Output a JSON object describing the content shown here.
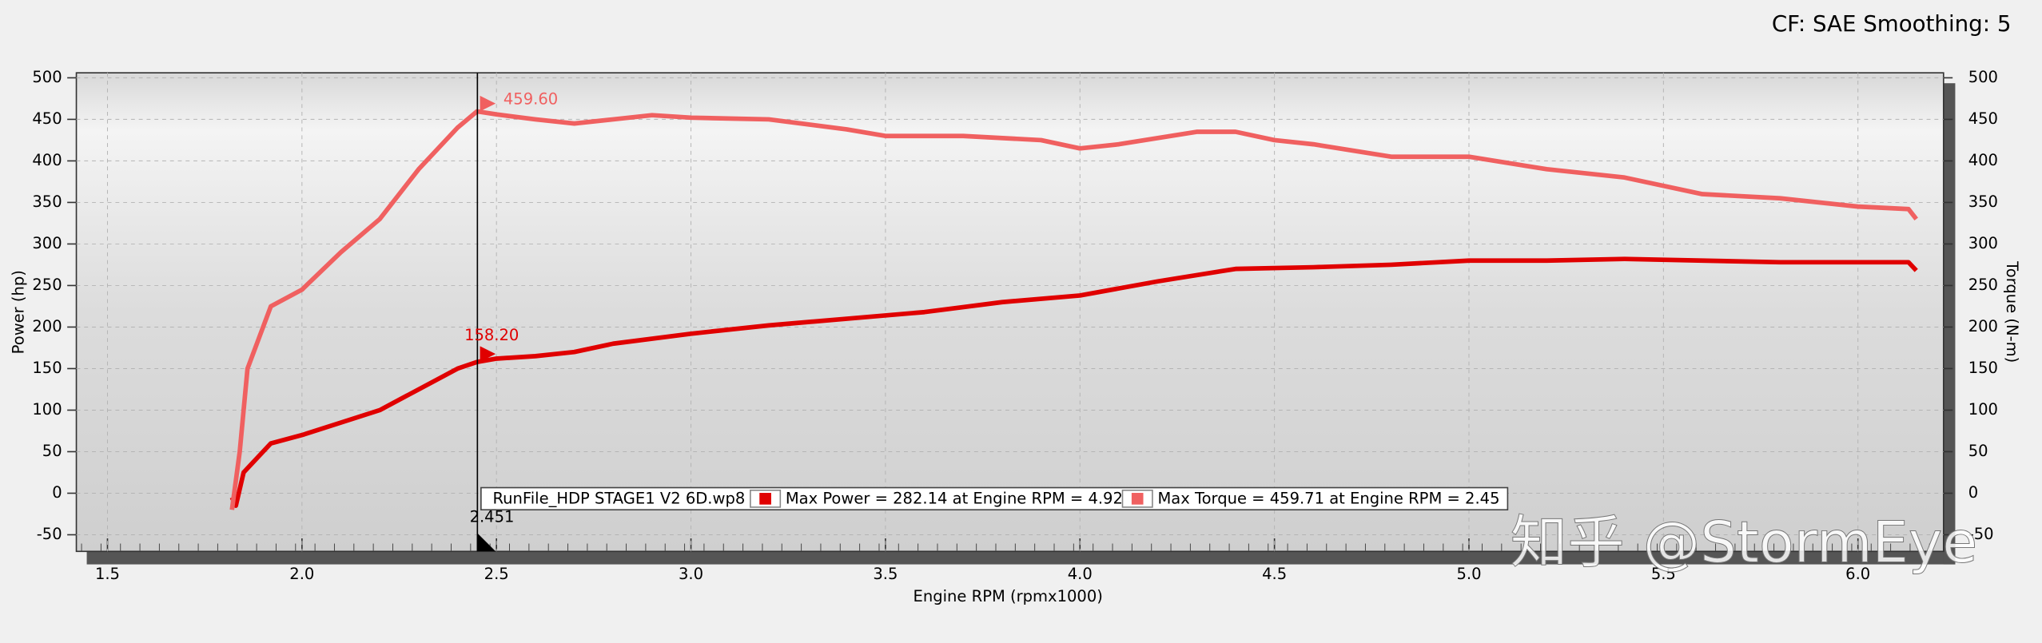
{
  "chart_data": {
    "type": "line",
    "header": "CF: SAE Smoothing: 5",
    "xlabel": "Engine RPM (rpmx1000)",
    "ylabel": "Power (hp)",
    "y2label": "Torque (N-m)",
    "xlim": [
      1.42,
      6.22
    ],
    "xticks": [
      {
        "value": 1.5,
        "label": "1.5"
      },
      {
        "value": 2,
        "label": "2.0"
      },
      {
        "value": 2.5,
        "label": "2.5"
      },
      {
        "value": 3,
        "label": "3.0"
      },
      {
        "value": 3.5,
        "label": "3.5"
      },
      {
        "value": 4,
        "label": "4.0"
      },
      {
        "value": 4.5,
        "label": "4.5"
      },
      {
        "value": 5,
        "label": "5.0"
      },
      {
        "value": 5.5,
        "label": "5.5"
      },
      {
        "value": 6,
        "label": "6.0"
      }
    ],
    "ylim": [
      -70,
      506
    ],
    "yticks": [
      -50,
      0,
      50,
      100,
      150,
      200,
      250,
      300,
      350,
      400,
      450,
      500
    ],
    "y2lim": [
      -70,
      506
    ],
    "y2ticks": [
      -50,
      0,
      50,
      100,
      150,
      200,
      250,
      300,
      350,
      400,
      450,
      500
    ],
    "grid": true,
    "series": [
      {
        "name": "Max Power = 282.14 at Engine RPM = 4.92",
        "color": "#e00000",
        "x": [
          1.82,
          1.83,
          1.85,
          1.9,
          1.92,
          2.0,
          2.1,
          2.2,
          2.3,
          2.4,
          2.45,
          2.5,
          2.6,
          2.7,
          2.8,
          3.0,
          3.2,
          3.4,
          3.6,
          3.8,
          4.0,
          4.2,
          4.4,
          4.6,
          4.8,
          5.0,
          5.2,
          5.4,
          5.6,
          5.8,
          6.0,
          6.13,
          6.15
        ],
        "values": [
          -5,
          -15,
          25,
          50,
          60,
          70,
          85,
          100,
          125,
          150,
          158,
          162,
          165,
          170,
          180,
          192,
          202,
          210,
          218,
          230,
          238,
          255,
          270,
          272,
          275,
          280,
          280,
          282,
          280,
          278,
          278,
          278,
          268
        ]
      },
      {
        "name": "Max Torque = 459.71 at Engine RPM = 2.45",
        "color": "#f06060",
        "axis": "y2",
        "x": [
          1.82,
          1.84,
          1.86,
          1.9,
          1.92,
          2.0,
          2.1,
          2.2,
          2.3,
          2.4,
          2.45,
          2.5,
          2.6,
          2.7,
          2.8,
          2.9,
          3.0,
          3.2,
          3.4,
          3.5,
          3.7,
          3.9,
          4.0,
          4.1,
          4.3,
          4.4,
          4.5,
          4.6,
          4.8,
          5.0,
          5.2,
          5.4,
          5.6,
          5.8,
          6.0,
          6.13,
          6.15
        ],
        "values": [
          -20,
          50,
          150,
          200,
          225,
          245,
          290,
          330,
          390,
          440,
          459.6,
          456,
          450,
          445,
          450,
          455,
          452,
          450,
          438,
          430,
          430,
          425,
          415,
          420,
          435,
          435,
          425,
          420,
          405,
          405,
          390,
          380,
          360,
          355,
          345,
          342,
          330
        ]
      }
    ],
    "legend_title": "RunFile_HDP STAGE1 V2 6D.wp8",
    "cursor": {
      "x": 2.451,
      "values": [
        158.2,
        459.6
      ],
      "value_labels": [
        "158.20",
        "459.60"
      ]
    },
    "watermark": "知乎 @StormEye"
  }
}
